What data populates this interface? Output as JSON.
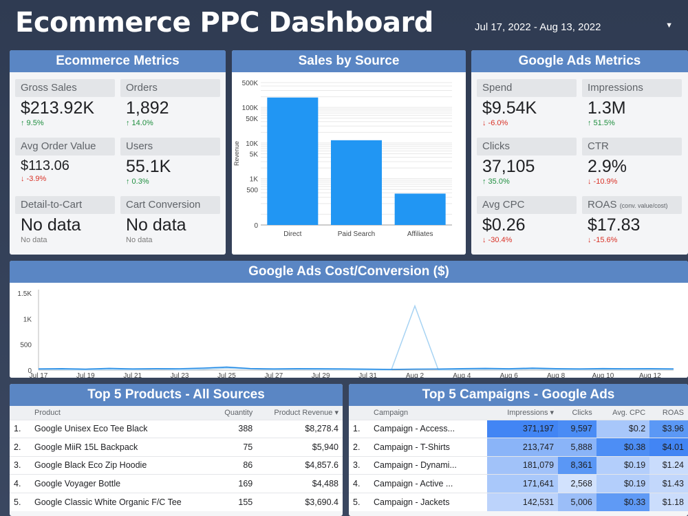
{
  "header": {
    "title": "Ecommerce PPC Dashboard",
    "date_range": "Jul 17, 2022 - Aug 13, 2022"
  },
  "ecommerce_metrics": {
    "title": "Ecommerce Metrics",
    "items": [
      {
        "label": "Gross Sales",
        "value": "$213.92K",
        "delta": "↑ 9.5%",
        "trend": "up"
      },
      {
        "label": "Orders",
        "value": "1,892",
        "delta": "↑ 14.0%",
        "trend": "up"
      },
      {
        "label": "Avg Order Value",
        "value": "$113.06",
        "delta": "↓ -3.9%",
        "trend": "down"
      },
      {
        "label": "Users",
        "value": "55.1K",
        "delta": "↑ 0.3%",
        "trend": "up"
      },
      {
        "label": "Detail-to-Cart",
        "value": "No data",
        "delta": "No data",
        "trend": "none"
      },
      {
        "label": "Cart Conversion",
        "value": "No data",
        "delta": "No data",
        "trend": "none"
      }
    ]
  },
  "sales_by_source": {
    "title": "Sales by Source",
    "chart_data": {
      "type": "bar",
      "categories": [
        "Direct",
        "Paid Search",
        "Affiliates"
      ],
      "values": [
        190000,
        12000,
        380
      ],
      "ylabel": "Revenue",
      "yscale": "log",
      "yticks": [
        "500K",
        "100K",
        "50K",
        "10K",
        "5K",
        "1K",
        "500",
        "0"
      ],
      "color": "#2196f3"
    }
  },
  "google_ads_metrics": {
    "title": "Google Ads Metrics",
    "items": [
      {
        "label": "Spend",
        "sub": "",
        "value": "$9.54K",
        "delta": "↓ -6.0%",
        "trend": "down"
      },
      {
        "label": "Impressions",
        "sub": "",
        "value": "1.3M",
        "delta": "↑ 51.5%",
        "trend": "up"
      },
      {
        "label": "Clicks",
        "sub": "",
        "value": "37,105",
        "delta": "↑ 35.0%",
        "trend": "up"
      },
      {
        "label": "CTR",
        "sub": "",
        "value": "2.9%",
        "delta": "↓ -10.9%",
        "trend": "down"
      },
      {
        "label": "Avg CPC",
        "sub": "",
        "value": "$0.26",
        "delta": "↓ -30.4%",
        "trend": "down"
      },
      {
        "label": "ROAS",
        "sub": "(conv. value/cost)",
        "value": "$17.83",
        "delta": "↓ -15.6%",
        "trend": "down"
      }
    ]
  },
  "cost_conversion": {
    "title": "Google Ads  Cost/Conversion ($)",
    "chart_data": {
      "type": "line",
      "x": [
        "Jul 17",
        "Jul 18",
        "Jul 19",
        "Jul 20",
        "Jul 21",
        "Jul 22",
        "Jul 23",
        "Jul 24",
        "Jul 25",
        "Jul 26",
        "Jul 27",
        "Jul 28",
        "Jul 29",
        "Jul 30",
        "Jul 31",
        "Aug 1",
        "Aug 2",
        "Aug 3",
        "Aug 4",
        "Aug 5",
        "Aug 6",
        "Aug 7",
        "Aug 8",
        "Aug 9",
        "Aug 10",
        "Aug 11",
        "Aug 12",
        "Aug 13"
      ],
      "xticks": [
        "Jul 17",
        "Jul 19",
        "Jul 21",
        "Jul 23",
        "Jul 25",
        "Jul 27",
        "Jul 29",
        "Jul 31",
        "Aug 2",
        "Aug 4",
        "Aug 6",
        "Aug 8",
        "Aug 10",
        "Aug 12"
      ],
      "series": [
        {
          "values": [
            15,
            10,
            5,
            12,
            8,
            20,
            6,
            18,
            40,
            22,
            12,
            15,
            10,
            8,
            6,
            5,
            1250,
            5,
            12,
            18,
            10,
            22,
            12,
            10,
            18,
            10,
            15,
            12
          ],
          "color": "#a7d3f3"
        },
        {
          "values": [
            25,
            30,
            20,
            35,
            25,
            30,
            28,
            40,
            60,
            32,
            25,
            30,
            28,
            25,
            20,
            15,
            20,
            22,
            30,
            35,
            28,
            40,
            30,
            25,
            32,
            28,
            30,
            25
          ],
          "color": "#1e88e5"
        }
      ],
      "ylim": [
        0,
        1500
      ],
      "yticks": [
        "1.5K",
        "1K",
        "500",
        "0"
      ]
    }
  },
  "top_products": {
    "title": "Top 5 Products - All Sources",
    "columns": [
      "Product",
      "Quantity",
      "Product Revenue ▾"
    ],
    "rows": [
      {
        "idx": "1.",
        "product": "Google Unisex Eco Tee Black",
        "qty": "388",
        "rev": "$8,278.4"
      },
      {
        "idx": "2.",
        "product": "Google MiiR 15L Backpack",
        "qty": "75",
        "rev": "$5,940"
      },
      {
        "idx": "3.",
        "product": "Google Black Eco Zip Hoodie",
        "qty": "86",
        "rev": "$4,857.6"
      },
      {
        "idx": "4.",
        "product": "Google Voyager Bottle",
        "qty": "169",
        "rev": "$4,488"
      },
      {
        "idx": "5.",
        "product": "Google Classic White Organic F/C Tee",
        "qty": "155",
        "rev": "$3,690.4"
      }
    ]
  },
  "top_campaigns": {
    "title": "Top 5 Campaigns - Google Ads",
    "columns": [
      "Campaign",
      "Impressions ▾",
      "Clicks",
      "Avg. CPC",
      "ROAS"
    ],
    "rows": [
      {
        "idx": "1.",
        "campaign": "Campaign - Access...",
        "imp": "371,197",
        "clicks": "9,597",
        "cpc": "$0.2",
        "roas": "$3.96",
        "c_imp": "#4285f4",
        "c_clicks": "#4a8cf5",
        "c_cpc": "#a8c7fa",
        "c_roas": "#5b98f5"
      },
      {
        "idx": "2.",
        "campaign": "Campaign - T-Shirts",
        "imp": "213,747",
        "clicks": "5,888",
        "cpc": "$0.38",
        "roas": "$4.01",
        "c_imp": "#8ab4f8",
        "c_clicks": "#8ab4f8",
        "c_cpc": "#4d8ef5",
        "c_roas": "#4285f4"
      },
      {
        "idx": "3.",
        "campaign": "Campaign - Dynami...",
        "imp": "181,079",
        "clicks": "8,361",
        "cpc": "$0.19",
        "roas": "$1.24",
        "c_imp": "#a1c2f9",
        "c_clicks": "#5a97f5",
        "c_cpc": "#b3cefb",
        "c_roas": "#c9dcfc"
      },
      {
        "idx": "4.",
        "campaign": "Campaign - Active ...",
        "imp": "171,641",
        "clicks": "2,568",
        "cpc": "$0.19",
        "roas": "$1.43",
        "c_imp": "#a9c8fa",
        "c_clicks": "#d2e2fd",
        "c_cpc": "#b3cefb",
        "c_roas": "#c2d7fb"
      },
      {
        "idx": "5.",
        "campaign": "Campaign - Jackets",
        "imp": "142,531",
        "clicks": "5,006",
        "cpc": "$0.33",
        "roas": "$1.18",
        "c_imp": "#bcd3fb",
        "c_clicks": "#9bbef8",
        "c_cpc": "#5f9af5",
        "c_roas": "#cbddfc"
      }
    ]
  }
}
